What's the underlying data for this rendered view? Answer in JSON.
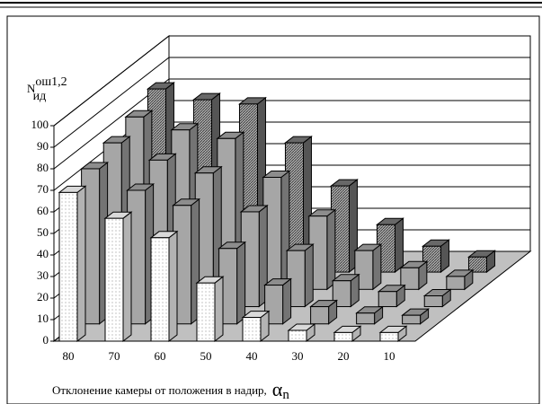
{
  "chart_data": {
    "type": "bar3d",
    "y_label": {
      "base": "N",
      "sup": "ош1,2",
      "sub": "ид"
    },
    "x_label": {
      "text": "Отклонение камеры от положения в надир,",
      "symbol": "α",
      "sub": "n"
    },
    "categories": [
      "80",
      "70",
      "60",
      "50",
      "40",
      "30",
      "20",
      "10"
    ],
    "series": [
      {
        "color": "#ffffff",
        "values": [
          69,
          57,
          48,
          27,
          11,
          5,
          4,
          4
        ]
      },
      {
        "color": "#a6a6a6",
        "values": [
          72,
          62,
          55,
          35,
          18,
          8,
          5,
          4
        ]
      },
      {
        "color": "#a6a6a6",
        "values": [
          76,
          68,
          62,
          44,
          26,
          12,
          7,
          5
        ]
      },
      {
        "color": "#a6a6a6",
        "values": [
          80,
          74,
          70,
          52,
          34,
          18,
          10,
          6
        ]
      },
      {
        "color": "#7a7a7a",
        "values": [
          85,
          80,
          78,
          60,
          40,
          22,
          12,
          7
        ]
      }
    ],
    "ylim": [
      0,
      100
    ],
    "yticks": [
      0,
      10,
      20,
      30,
      40,
      50,
      60,
      70,
      80,
      90,
      100
    ],
    "grid": true
  }
}
